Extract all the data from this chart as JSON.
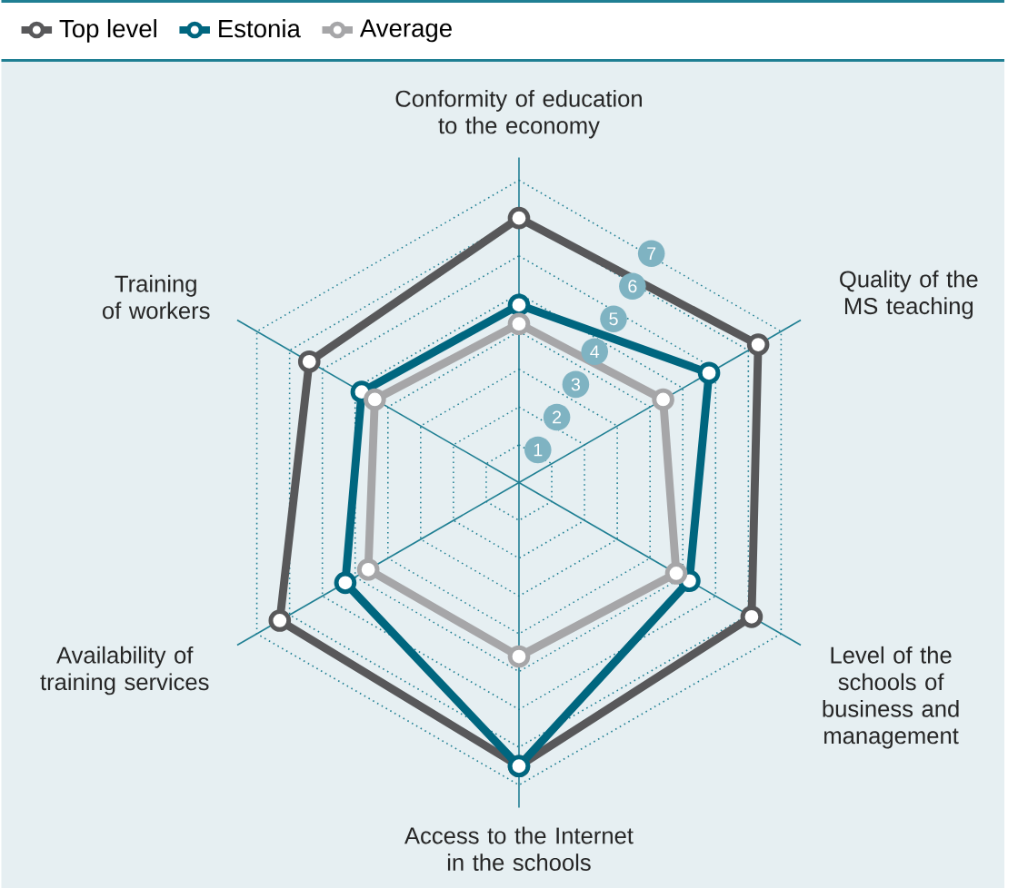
{
  "chart_data": {
    "type": "radar",
    "categories": [
      "Conformity of education to the economy",
      "Quality of the MS teaching",
      "Level of the schools of business and management",
      "Access to the Internet in the schools",
      "Availability of training services",
      "Training of workers"
    ],
    "series": [
      {
        "name": "Top level",
        "color": "#58585a",
        "values": [
          7.0,
          7.3,
          7.1,
          7.5,
          7.3,
          6.4
        ]
      },
      {
        "name": "Estonia",
        "color": "#00667f",
        "values": [
          4.7,
          5.8,
          5.2,
          7.5,
          5.3,
          4.8
        ]
      },
      {
        "name": "Average",
        "color": "#a6a6a8",
        "values": [
          4.2,
          4.4,
          4.8,
          4.6,
          4.6,
          4.4
        ]
      }
    ],
    "ylim": [
      0,
      8
    ],
    "yticks": [
      1,
      2,
      3,
      4,
      5,
      6,
      7
    ],
    "grid": true,
    "legend": "top",
    "marker": "circle",
    "line_style": "solid"
  }
}
